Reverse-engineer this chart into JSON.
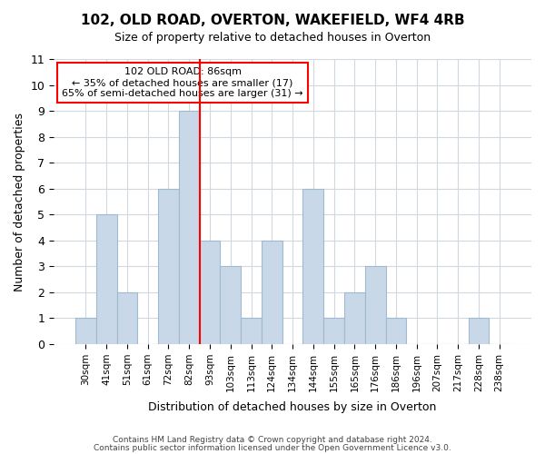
{
  "title": "102, OLD ROAD, OVERTON, WAKEFIELD, WF4 4RB",
  "subtitle": "Size of property relative to detached houses in Overton",
  "xlabel": "Distribution of detached houses by size in Overton",
  "ylabel": "Number of detached properties",
  "bar_color": "#c8d8e8",
  "bar_edge_color": "#a0b8d0",
  "bins": [
    "30sqm",
    "41sqm",
    "51sqm",
    "61sqm",
    "72sqm",
    "82sqm",
    "93sqm",
    "103sqm",
    "113sqm",
    "124sqm",
    "134sqm",
    "144sqm",
    "155sqm",
    "165sqm",
    "176sqm",
    "186sqm",
    "196sqm",
    "207sqm",
    "217sqm",
    "228sqm",
    "238sqm"
  ],
  "values": [
    1,
    5,
    2,
    0,
    6,
    9,
    4,
    3,
    1,
    4,
    0,
    6,
    1,
    2,
    3,
    1,
    0,
    0,
    0,
    1,
    0
  ],
  "ylim": [
    0,
    11
  ],
  "yticks": [
    0,
    1,
    2,
    3,
    4,
    5,
    6,
    7,
    8,
    9,
    10,
    11
  ],
  "property_line_x": 5.5,
  "annotation_text_line1": "102 OLD ROAD: 86sqm",
  "annotation_text_line2": "← 35% of detached houses are smaller (17)",
  "annotation_text_line3": "65% of semi-detached houses are larger (31) →",
  "annotation_box_color": "white",
  "annotation_box_edge_color": "red",
  "property_line_color": "red",
  "footer1": "Contains HM Land Registry data © Crown copyright and database right 2024.",
  "footer2": "Contains public sector information licensed under the Open Government Licence v3.0.",
  "background_color": "white",
  "grid_color": "#d0d8e0"
}
